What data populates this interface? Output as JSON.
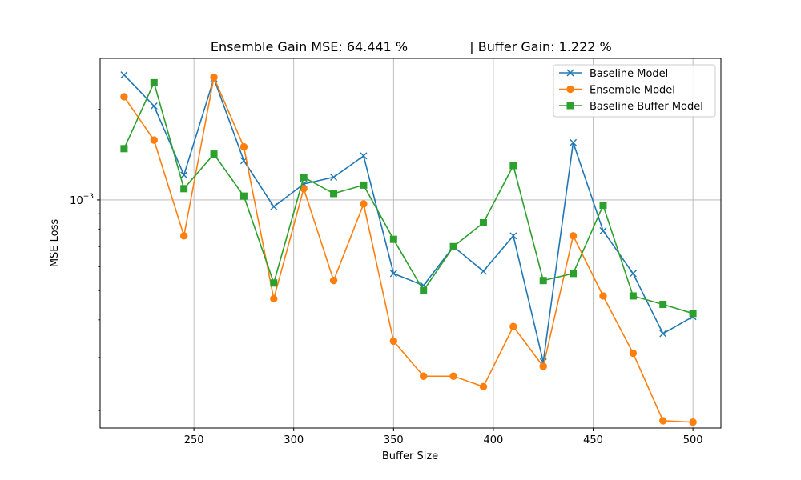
{
  "chart_data": {
    "type": "line",
    "title": "Ensemble Gain MSE: 64.441 %              | Buffer Gain: 1.222 %",
    "title_left": "Ensemble Gain MSE: 64.441 %",
    "title_right": "| Buffer Gain: 1.222 %",
    "xlabel": "Buffer Size",
    "ylabel": "MSE Loss",
    "yscale": "log",
    "xlim": [
      203,
      514
    ],
    "ylim": [
      0.000175,
      0.00295
    ],
    "x_ticks": [
      250,
      300,
      350,
      400,
      450,
      500
    ],
    "x_tick_labels": [
      "250",
      "300",
      "350",
      "400",
      "450",
      "500"
    ],
    "y_major_ticks": [
      0.001
    ],
    "y_major_tick_labels": [
      {
        "base": "10",
        "exp": "−3"
      }
    ],
    "y_minor_ticks": [
      0.0002,
      0.0003,
      0.0004,
      0.0005,
      0.0006,
      0.0007,
      0.0008,
      0.0009,
      0.002
    ],
    "grid": true,
    "legend_position": "top-right",
    "x": [
      215,
      230,
      245,
      260,
      275,
      290,
      305,
      320,
      335,
      350,
      365,
      380,
      395,
      410,
      425,
      440,
      455,
      470,
      485,
      500
    ],
    "series": [
      {
        "name": "Baseline Model",
        "color": "#1f77b4",
        "marker": "x",
        "values": [
          0.0026,
          0.00205,
          0.00121,
          0.00253,
          0.00135,
          0.00095,
          0.00113,
          0.00119,
          0.0014,
          0.00057,
          0.00052,
          0.0007,
          0.00058,
          0.00076,
          0.00029,
          0.00155,
          0.00079,
          0.00057,
          0.00036,
          0.00041
        ]
      },
      {
        "name": "Ensemble Model",
        "color": "#ff7f0e",
        "marker": "o",
        "values": [
          0.0022,
          0.00158,
          0.00076,
          0.00255,
          0.0015,
          0.00047,
          0.00109,
          0.00054,
          0.00097,
          0.00034,
          0.00026,
          0.00026,
          0.00024,
          0.00038,
          0.00028,
          0.00076,
          0.00048,
          0.00031,
          0.000185,
          0.000183
        ]
      },
      {
        "name": "Baseline Buffer Model",
        "color": "#2ca02c",
        "marker": "s",
        "values": [
          0.00148,
          0.00245,
          0.00109,
          0.00142,
          0.00103,
          0.00053,
          0.00119,
          0.00105,
          0.00112,
          0.00074,
          0.0005,
          0.0007,
          0.00084,
          0.0013,
          0.00054,
          0.00057,
          0.00096,
          0.00048,
          0.00045,
          0.00042
        ]
      }
    ]
  }
}
